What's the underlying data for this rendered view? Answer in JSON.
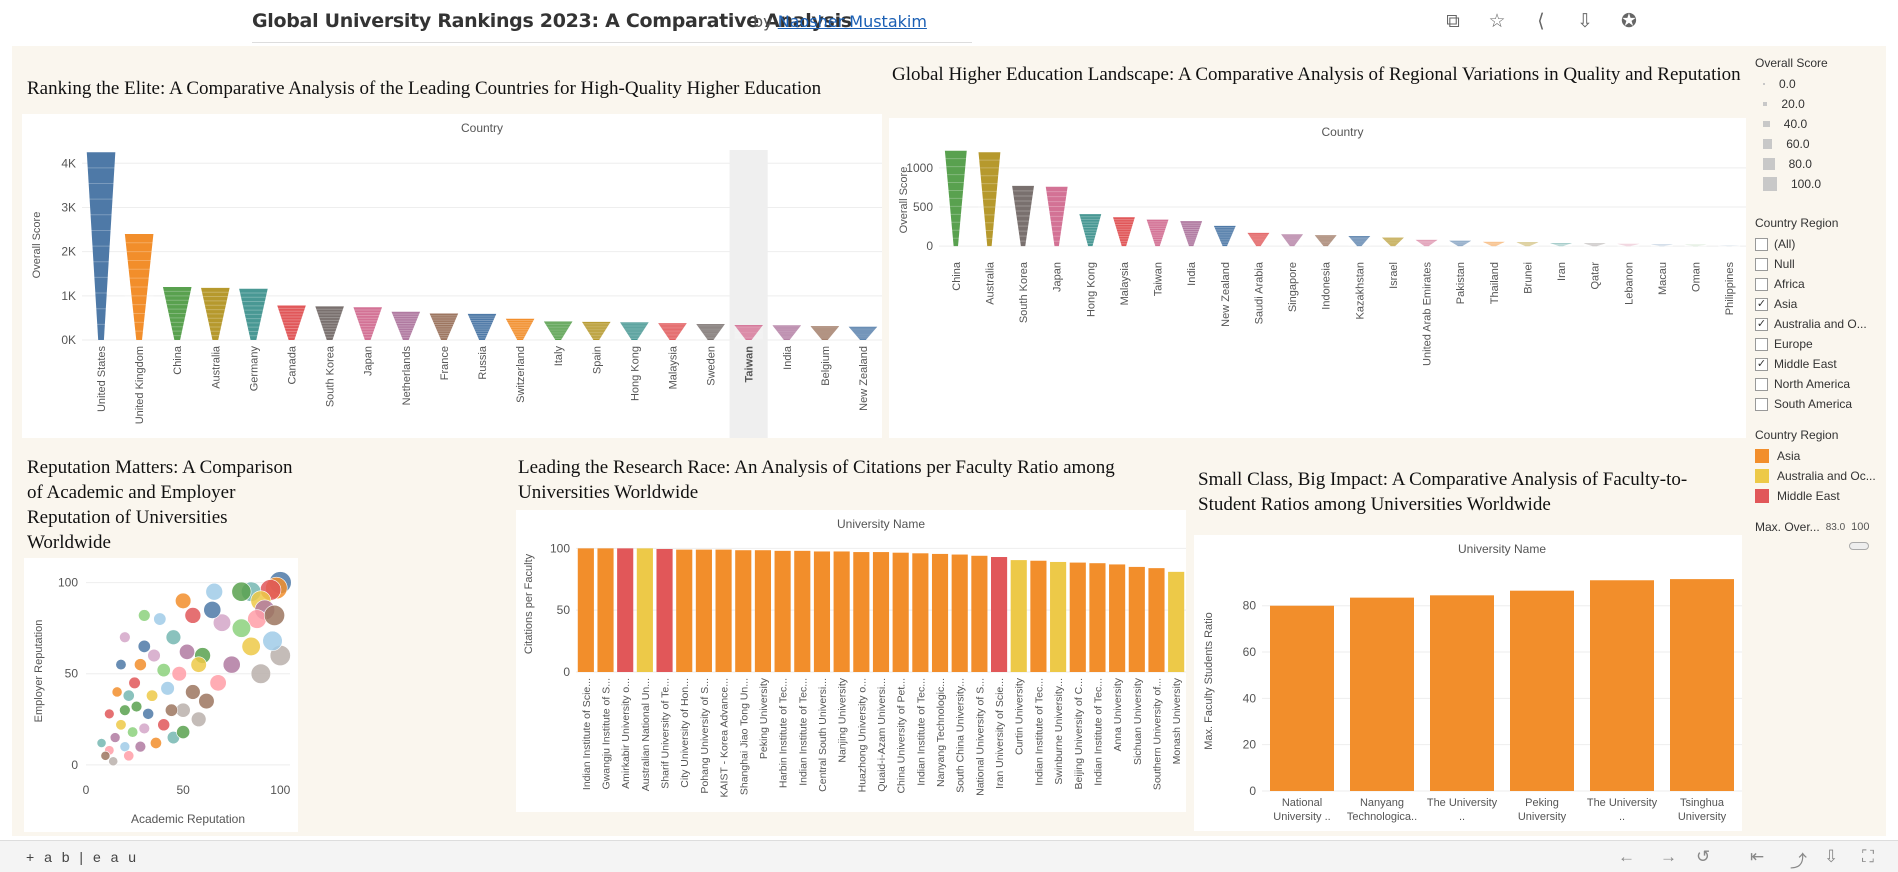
{
  "header": {
    "title": "Global University Rankings 2023: A Comparative Analysis",
    "by": "by",
    "author": "Naosher Mustakim"
  },
  "legends": {
    "size_title": "Overall Score",
    "size_values": [
      "0.0",
      "20.0",
      "40.0",
      "60.0",
      "80.0",
      "100.0"
    ],
    "filter_title": "Country Region",
    "filter_items": [
      {
        "label": "(All)",
        "checked": false
      },
      {
        "label": "Null",
        "checked": false
      },
      {
        "label": "Africa",
        "checked": false
      },
      {
        "label": "Asia",
        "checked": true
      },
      {
        "label": "Australia and O...",
        "checked": true
      },
      {
        "label": "Europe",
        "checked": false
      },
      {
        "label": "Middle East",
        "checked": true
      },
      {
        "label": "North America",
        "checked": false
      },
      {
        "label": "South America",
        "checked": false
      }
    ],
    "color_title": "Country Region",
    "color_items": [
      {
        "label": "Asia",
        "color": "#f28e2b"
      },
      {
        "label": "Australia and Oc...",
        "color": "#edc948"
      },
      {
        "label": "Middle East",
        "color": "#e15759"
      }
    ],
    "max_label": "Max. Over...",
    "max_min": "83.0",
    "max_max": "100"
  },
  "footer": {
    "logo": "+ a b | e a u"
  },
  "chart_data": [
    {
      "type": "bar",
      "title": "Ranking the Elite: A Comparative Analysis of the Leading Countries for High-Quality Higher Education",
      "header": "Country",
      "ylabel": "Overall Score",
      "ylim": [
        0,
        4300
      ],
      "yticks": [
        {
          "v": 0,
          "t": "0K"
        },
        {
          "v": 1000,
          "t": "1K"
        },
        {
          "v": 2000,
          "t": "2K"
        },
        {
          "v": 3000,
          "t": "3K"
        },
        {
          "v": 4000,
          "t": "4K"
        }
      ],
      "highlight": "Taiwan",
      "categories": [
        "United States",
        "United Kingdom",
        "China",
        "Australia",
        "Germany",
        "Canada",
        "South Korea",
        "Japan",
        "Netherlands",
        "France",
        "Russia",
        "Switzerland",
        "Italy",
        "Spain",
        "Hong Kong",
        "Malaysia",
        "Sweden",
        "Taiwan",
        "India",
        "Belgium",
        "New Zealand"
      ],
      "values": [
        4250,
        2400,
        1200,
        1180,
        1160,
        780,
        760,
        740,
        640,
        600,
        590,
        480,
        420,
        410,
        400,
        380,
        360,
        340,
        330,
        310,
        300
      ],
      "colors": [
        "#4e79a7",
        "#f28e2b",
        "#59a14f",
        "#b6992d",
        "#499894",
        "#e15759",
        "#79706e",
        "#d37295",
        "#b07aa1",
        "#9d7660",
        "#4e79a7",
        "#f28e2b",
        "#59a14f",
        "#b6992d",
        "#499894",
        "#e15759",
        "#79706e",
        "#d37295",
        "#b07aa1",
        "#9d7660",
        "#4e79a7"
      ]
    },
    {
      "type": "bar",
      "title": "Global Higher Education Landscape: A Comparative Analysis of Regional Variations in Quality and Reputation",
      "header": "Country",
      "ylabel": "Overall Score",
      "ylim": [
        -100,
        1280
      ],
      "yticks": [
        {
          "v": 0,
          "t": "0"
        },
        {
          "v": 500,
          "t": "500"
        },
        {
          "v": 1000,
          "t": "1000"
        }
      ],
      "categories": [
        "China",
        "Australia",
        "South Korea",
        "Japan",
        "Hong Kong",
        "Malaysia",
        "Taiwan",
        "India",
        "New Zealand",
        "Saudi Arabia",
        "Singapore",
        "Indonesia",
        "Kazakhstan",
        "Israel",
        "United Arab Emirates",
        "Pakistan",
        "Thailand",
        "Brunei",
        "Iran",
        "Qatar",
        "Lebanon",
        "Macau",
        "Oman",
        "Philippines"
      ],
      "values": [
        1220,
        1200,
        770,
        760,
        410,
        370,
        340,
        320,
        260,
        170,
        150,
        140,
        130,
        110,
        80,
        70,
        55,
        50,
        40,
        35,
        30,
        25,
        20,
        15
      ],
      "colors": [
        "#59a14f",
        "#b6992d",
        "#79706e",
        "#d37295",
        "#499894",
        "#e15759",
        "#d37295",
        "#b07aa1",
        "#4e79a7",
        "#e15759",
        "#b07aa1",
        "#9d7660",
        "#4e79a7",
        "#b6992d",
        "#d37295",
        "#4e79a7",
        "#f28e2b",
        "#b6992d",
        "#499894",
        "#79706e",
        "#d37295",
        "#4e79a7",
        "#59a14f",
        "#4e79a7"
      ]
    },
    {
      "type": "scatter",
      "title": "Reputation Matters: A Comparison of Academic and Employer Reputation of Universities Worldwide",
      "xlabel": "Academic Reputation",
      "ylabel": "Employer Reputation",
      "xlim": [
        0,
        105
      ],
      "ylim": [
        -5,
        108
      ],
      "xticks": [
        0,
        50,
        100
      ],
      "yticks": [
        0,
        50,
        100
      ],
      "points": [
        [
          100,
          100,
          100
        ],
        [
          98,
          97,
          98
        ],
        [
          95,
          96,
          92
        ],
        [
          85,
          95,
          85
        ],
        [
          80,
          95,
          83
        ],
        [
          90,
          90,
          88
        ],
        [
          92,
          85,
          87
        ],
        [
          88,
          80,
          80
        ],
        [
          97,
          82,
          90
        ],
        [
          100,
          60,
          90
        ],
        [
          96,
          68,
          85
        ],
        [
          80,
          75,
          78
        ],
        [
          70,
          78,
          72
        ],
        [
          65,
          85,
          70
        ],
        [
          50,
          90,
          60
        ],
        [
          55,
          82,
          62
        ],
        [
          45,
          70,
          55
        ],
        [
          60,
          60,
          62
        ],
        [
          58,
          55,
          60
        ],
        [
          52,
          62,
          58
        ],
        [
          48,
          50,
          54
        ],
        [
          55,
          40,
          55
        ],
        [
          50,
          30,
          52
        ],
        [
          42,
          42,
          48
        ],
        [
          40,
          52,
          46
        ],
        [
          35,
          60,
          42
        ],
        [
          30,
          65,
          40
        ],
        [
          28,
          55,
          38
        ],
        [
          25,
          45,
          35
        ],
        [
          22,
          38,
          33
        ],
        [
          20,
          30,
          30
        ],
        [
          18,
          22,
          28
        ],
        [
          15,
          15,
          25
        ],
        [
          12,
          8,
          22
        ],
        [
          10,
          5,
          20
        ],
        [
          14,
          2,
          20
        ],
        [
          20,
          10,
          25
        ],
        [
          24,
          18,
          28
        ],
        [
          30,
          20,
          30
        ],
        [
          32,
          28,
          32
        ],
        [
          36,
          12,
          33
        ],
        [
          40,
          22,
          38
        ],
        [
          45,
          15,
          40
        ],
        [
          50,
          18,
          45
        ],
        [
          85,
          65,
          78
        ],
        [
          75,
          55,
          70
        ],
        [
          68,
          45,
          65
        ],
        [
          62,
          35,
          60
        ],
        [
          90,
          50,
          85
        ],
        [
          38,
          80,
          40
        ],
        [
          30,
          82,
          36
        ],
        [
          20,
          70,
          30
        ],
        [
          18,
          55,
          28
        ],
        [
          16,
          40,
          26
        ],
        [
          12,
          28,
          24
        ],
        [
          8,
          12,
          20
        ],
        [
          26,
          32,
          30
        ],
        [
          34,
          38,
          34
        ],
        [
          28,
          10,
          30
        ],
        [
          22,
          5,
          27
        ],
        [
          44,
          30,
          40
        ],
        [
          58,
          25,
          55
        ],
        [
          66,
          95,
          68
        ]
      ],
      "colors": [
        "#4e79a7",
        "#f28e2b",
        "#e15759",
        "#76b7b2",
        "#59a14f",
        "#edc948",
        "#b07aa1",
        "#ff9da7",
        "#9c755f",
        "#bab0ac",
        "#a0cbe8",
        "#8cd17d",
        "#d4a6c8"
      ]
    },
    {
      "type": "bar",
      "title": "Leading the Research Race: An Analysis of Citations per Faculty Ratio among Universities Worldwide",
      "header": "University Name",
      "ylabel": "Citations per Faculty",
      "ylim": [
        0,
        110
      ],
      "yticks": [
        {
          "v": 0,
          "t": "0"
        },
        {
          "v": 50,
          "t": "50"
        },
        {
          "v": 100,
          "t": "100"
        }
      ],
      "categories": [
        "Indian Institute of Scie...",
        "Gwangju Institute of S...",
        "Amirkabir University o...",
        "Australian National Un...",
        "Sharif University of Te...",
        "City University of Hon...",
        "Pohang University of S...",
        "KAIST - Korea Advance...",
        "Shanghai Jiao Tong Un...",
        "Peking University",
        "Harbin Institute of Tec...",
        "Indian Institute of Tec...",
        "Central South Universi...",
        "Nanjing University",
        "Huazhong University o...",
        "Quaid-i-Azam Universi...",
        "China University of Pet...",
        "Indian Institute of Tec...",
        "Nanyang Technologic...",
        "South China University...",
        "National University of S...",
        "Iran University of Scie...",
        "Curtin University",
        "Indian Institute of Tec...",
        "Swinburne University...",
        "Beijing University of C...",
        "Indian Institute of Tec...",
        "Anna University",
        "Sichuan University",
        "Southern University of...",
        "Monash University"
      ],
      "values": [
        100,
        100,
        100,
        100,
        99.5,
        99,
        99,
        99,
        98.5,
        98.5,
        98,
        98,
        97.5,
        97.5,
        97,
        97,
        96.5,
        96,
        95.5,
        95,
        94,
        93,
        90.5,
        90,
        89,
        88.5,
        88,
        87,
        85,
        84,
        81
      ],
      "colors": [
        "#f28e2b",
        "#f28e2b",
        "#e15759",
        "#edc948",
        "#e15759",
        "#f28e2b",
        "#f28e2b",
        "#f28e2b",
        "#f28e2b",
        "#f28e2b",
        "#f28e2b",
        "#f28e2b",
        "#f28e2b",
        "#f28e2b",
        "#f28e2b",
        "#f28e2b",
        "#f28e2b",
        "#f28e2b",
        "#f28e2b",
        "#f28e2b",
        "#f28e2b",
        "#e15759",
        "#edc948",
        "#f28e2b",
        "#edc948",
        "#f28e2b",
        "#f28e2b",
        "#f28e2b",
        "#f28e2b",
        "#f28e2b",
        "#edc948"
      ]
    },
    {
      "type": "bar",
      "title": "Small Class, Big Impact: A Comparative Analysis of Faculty-to-Student Ratios among Universities Worldwide",
      "header": "University Name",
      "ylabel": "Max. Faculty Students Ratio",
      "ylim": [
        0,
        95
      ],
      "yticks": [
        {
          "v": 0,
          "t": "0"
        },
        {
          "v": 20,
          "t": "20"
        },
        {
          "v": 40,
          "t": "40"
        },
        {
          "v": 60,
          "t": "60"
        },
        {
          "v": 80,
          "t": "80"
        }
      ],
      "categories": [
        [
          "National",
          "University .."
        ],
        [
          "Nanyang",
          "Technologica.."
        ],
        [
          "The University",
          ".."
        ],
        [
          "Peking",
          "University"
        ],
        [
          "The University",
          ".."
        ],
        [
          "Tsinghua",
          "University"
        ]
      ],
      "values": [
        80,
        83.5,
        84.5,
        86.5,
        91,
        91.5
      ],
      "colors": [
        "#f28e2b",
        "#f28e2b",
        "#f28e2b",
        "#f28e2b",
        "#f28e2b",
        "#f28e2b"
      ]
    }
  ]
}
